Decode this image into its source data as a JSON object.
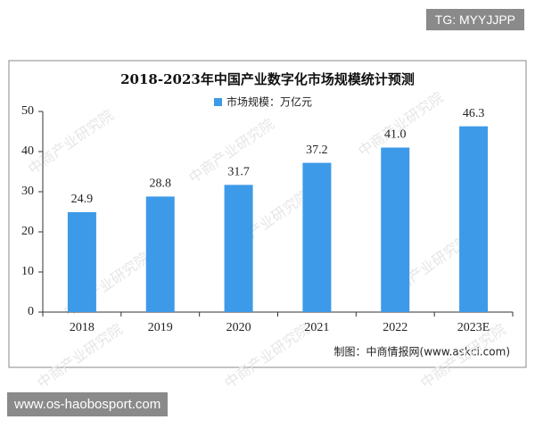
{
  "header_tag": "TG: MYYJJPP",
  "footer_url": "www.os-haobosport.com",
  "chart_data": {
    "type": "bar",
    "title": "2018-2023年中国产业数字化市场规模统计预测",
    "watermark": "中商产业研究院",
    "source": "制图：中商情报网(www.askci.com)",
    "categories": [
      "2018",
      "2019",
      "2020",
      "2021",
      "2022",
      "2023E"
    ],
    "series": [
      {
        "name": "市场规模：万亿元",
        "color": "#3d9ae8",
        "values": [
          24.9,
          28.8,
          31.7,
          37.2,
          41.0,
          46.3
        ],
        "value_labels": [
          "24.9",
          "28.8",
          "31.7",
          "37.2",
          "41.0",
          "46.3"
        ]
      }
    ],
    "ylim": [
      0,
      50
    ],
    "yticks": [
      0,
      10,
      20,
      30,
      40,
      50
    ],
    "grid": false
  }
}
